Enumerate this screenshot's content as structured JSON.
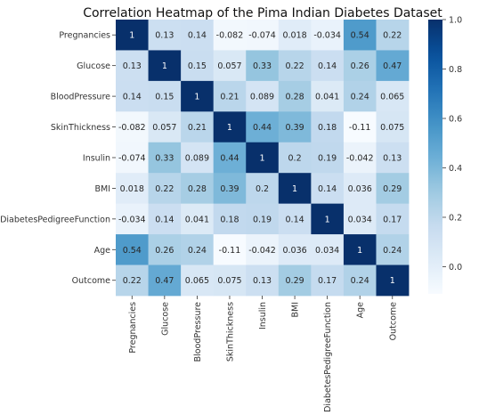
{
  "chart_data": {
    "type": "heatmap",
    "title": "Correlation Heatmap of the Pima Indian Diabetes Dataset",
    "rows": [
      "Pregnancies",
      "Glucose",
      "BloodPressure",
      "SkinThickness",
      "Insulin",
      "BMI",
      "DiabetesPedigreeFunction",
      "Age",
      "Outcome"
    ],
    "columns": [
      "Pregnancies",
      "Glucose",
      "BloodPressure",
      "SkinThickness",
      "Insulin",
      "BMI",
      "DiabetesPedigreeFunction",
      "Age",
      "Outcome"
    ],
    "values": [
      [
        1,
        0.13,
        0.14,
        -0.082,
        -0.074,
        0.018,
        -0.034,
        0.54,
        0.22
      ],
      [
        0.13,
        1,
        0.15,
        0.057,
        0.33,
        0.22,
        0.14,
        0.26,
        0.47
      ],
      [
        0.14,
        0.15,
        1,
        0.21,
        0.089,
        0.28,
        0.041,
        0.24,
        0.065
      ],
      [
        -0.082,
        0.057,
        0.21,
        1,
        0.44,
        0.39,
        0.18,
        -0.11,
        0.075
      ],
      [
        -0.074,
        0.33,
        0.089,
        0.44,
        1,
        0.2,
        0.19,
        -0.042,
        0.13
      ],
      [
        0.018,
        0.22,
        0.28,
        0.39,
        0.2,
        1,
        0.14,
        0.036,
        0.29
      ],
      [
        -0.034,
        0.14,
        0.041,
        0.18,
        0.19,
        0.14,
        1,
        0.034,
        0.17
      ],
      [
        0.54,
        0.26,
        0.24,
        -0.11,
        -0.042,
        0.036,
        0.034,
        1,
        0.24
      ],
      [
        0.22,
        0.47,
        0.065,
        0.075,
        0.13,
        0.29,
        0.17,
        0.24,
        1
      ]
    ],
    "colormap": "Blues",
    "vmin": -0.11,
    "vmax": 1.0,
    "colorbar_ticks": [
      "0.0",
      "0.2",
      "0.4",
      "0.6",
      "0.8",
      "1.0"
    ],
    "colorbar_tick_values": [
      0.0,
      0.2,
      0.4,
      0.6,
      0.8,
      1.0
    ],
    "annotations": true
  }
}
